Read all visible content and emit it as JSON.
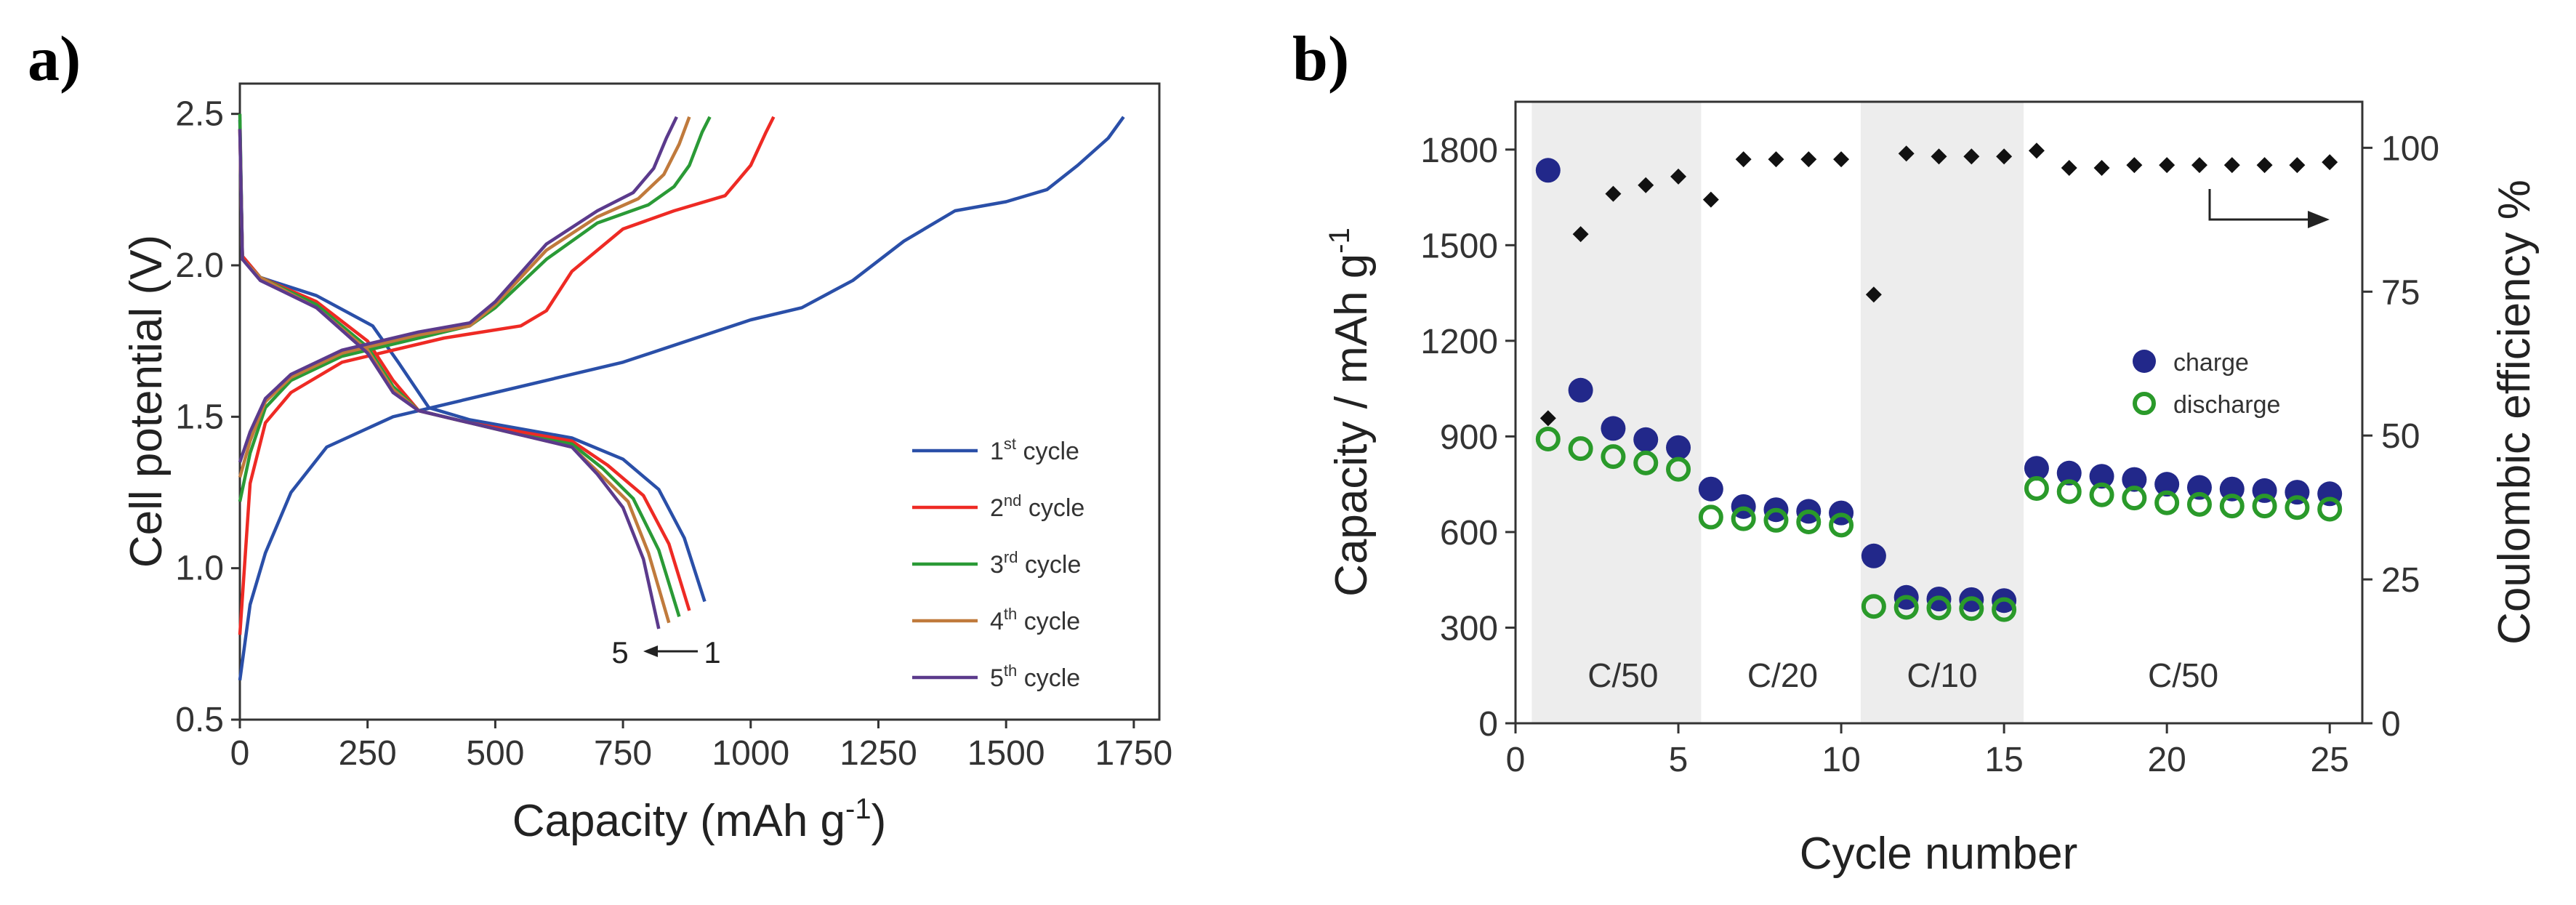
{
  "panels": {
    "a": "a)",
    "b": "b)"
  },
  "chart_data": [
    {
      "type": "line",
      "xlabel": "Capacity (mAh g",
      "xlabel_sup": "-1",
      "xlabel_end": ")",
      "ylabel": "Cell potential (V)",
      "xlim": [
        0,
        1800
      ],
      "ylim": [
        0.5,
        2.6
      ],
      "xticks": [
        "0",
        "250",
        "500",
        "750",
        "1000",
        "1250",
        "1500",
        "1750"
      ],
      "yticks": [
        "0.5",
        "1.0",
        "1.5",
        "2.0",
        "2.5"
      ],
      "legend_position": "bottom-right",
      "annotation": {
        "left": "5",
        "right": "1"
      },
      "series": [
        {
          "name": "1",
          "name_sup": "st",
          "name_end": " cycle",
          "color": "#2a4fa8",
          "charge": [
            [
              0,
              0.63
            ],
            [
              20,
              0.88
            ],
            [
              50,
              1.05
            ],
            [
              100,
              1.25
            ],
            [
              170,
              1.4
            ],
            [
              300,
              1.5
            ],
            [
              500,
              1.58
            ],
            [
              750,
              1.68
            ],
            [
              1000,
              1.82
            ],
            [
              1100,
              1.86
            ],
            [
              1200,
              1.95
            ],
            [
              1300,
              2.08
            ],
            [
              1400,
              2.18
            ],
            [
              1500,
              2.21
            ],
            [
              1580,
              2.25
            ],
            [
              1640,
              2.33
            ],
            [
              1700,
              2.42
            ],
            [
              1730,
              2.49
            ]
          ],
          "discharge": [
            [
              0,
              2.48
            ],
            [
              5,
              2.03
            ],
            [
              40,
              1.96
            ],
            [
              150,
              1.9
            ],
            [
              260,
              1.8
            ],
            [
              310,
              1.68
            ],
            [
              370,
              1.53
            ],
            [
              450,
              1.49
            ],
            [
              550,
              1.46
            ],
            [
              650,
              1.43
            ],
            [
              750,
              1.36
            ],
            [
              820,
              1.26
            ],
            [
              870,
              1.1
            ],
            [
              910,
              0.89
            ]
          ]
        },
        {
          "name": "2",
          "name_sup": "nd",
          "name_end": " cycle",
          "color": "#ee2a24",
          "charge": [
            [
              0,
              0.78
            ],
            [
              20,
              1.28
            ],
            [
              50,
              1.48
            ],
            [
              100,
              1.58
            ],
            [
              200,
              1.68
            ],
            [
              400,
              1.76
            ],
            [
              550,
              1.8
            ],
            [
              600,
              1.85
            ],
            [
              650,
              1.98
            ],
            [
              750,
              2.12
            ],
            [
              850,
              2.18
            ],
            [
              950,
              2.23
            ],
            [
              1000,
              2.33
            ],
            [
              1030,
              2.44
            ],
            [
              1045,
              2.49
            ]
          ],
          "discharge": [
            [
              0,
              2.45
            ],
            [
              5,
              2.03
            ],
            [
              40,
              1.96
            ],
            [
              150,
              1.88
            ],
            [
              250,
              1.75
            ],
            [
              300,
              1.62
            ],
            [
              350,
              1.52
            ],
            [
              450,
              1.48
            ],
            [
              550,
              1.45
            ],
            [
              650,
              1.42
            ],
            [
              720,
              1.34
            ],
            [
              790,
              1.24
            ],
            [
              840,
              1.08
            ],
            [
              880,
              0.86
            ]
          ]
        },
        {
          "name": "3",
          "name_sup": "rd",
          "name_end": " cycle",
          "color": "#2a9a36",
          "charge": [
            [
              0,
              1.22
            ],
            [
              20,
              1.38
            ],
            [
              50,
              1.53
            ],
            [
              100,
              1.62
            ],
            [
              200,
              1.7
            ],
            [
              350,
              1.76
            ],
            [
              450,
              1.8
            ],
            [
              500,
              1.86
            ],
            [
              600,
              2.02
            ],
            [
              700,
              2.14
            ],
            [
              800,
              2.2
            ],
            [
              850,
              2.26
            ],
            [
              880,
              2.33
            ],
            [
              905,
              2.44
            ],
            [
              920,
              2.49
            ]
          ],
          "discharge": [
            [
              0,
              2.5
            ],
            [
              5,
              2.02
            ],
            [
              40,
              1.96
            ],
            [
              150,
              1.87
            ],
            [
              250,
              1.73
            ],
            [
              300,
              1.6
            ],
            [
              350,
              1.52
            ],
            [
              450,
              1.48
            ],
            [
              550,
              1.44
            ],
            [
              650,
              1.41
            ],
            [
              710,
              1.33
            ],
            [
              770,
              1.23
            ],
            [
              820,
              1.06
            ],
            [
              860,
              0.84
            ]
          ]
        },
        {
          "name": "4",
          "name_sup": "th",
          "name_end": " cycle",
          "color": "#c07a3c",
          "charge": [
            [
              0,
              1.3
            ],
            [
              20,
              1.42
            ],
            [
              50,
              1.55
            ],
            [
              100,
              1.63
            ],
            [
              200,
              1.71
            ],
            [
              350,
              1.77
            ],
            [
              450,
              1.8
            ],
            [
              500,
              1.87
            ],
            [
              600,
              2.05
            ],
            [
              700,
              2.16
            ],
            [
              780,
              2.22
            ],
            [
              830,
              2.3
            ],
            [
              860,
              2.4
            ],
            [
              880,
              2.49
            ]
          ],
          "discharge": [
            [
              0,
              2.45
            ],
            [
              5,
              2.02
            ],
            [
              40,
              1.96
            ],
            [
              150,
              1.86
            ],
            [
              250,
              1.72
            ],
            [
              300,
              1.59
            ],
            [
              350,
              1.52
            ],
            [
              450,
              1.48
            ],
            [
              550,
              1.44
            ],
            [
              650,
              1.4
            ],
            [
              700,
              1.32
            ],
            [
              760,
              1.22
            ],
            [
              800,
              1.05
            ],
            [
              840,
              0.82
            ]
          ]
        },
        {
          "name": "5",
          "name_sup": "th",
          "name_end": " cycle",
          "color": "#5b3a8c",
          "charge": [
            [
              0,
              1.35
            ],
            [
              20,
              1.45
            ],
            [
              50,
              1.56
            ],
            [
              100,
              1.64
            ],
            [
              200,
              1.72
            ],
            [
              350,
              1.78
            ],
            [
              450,
              1.81
            ],
            [
              500,
              1.88
            ],
            [
              600,
              2.07
            ],
            [
              700,
              2.18
            ],
            [
              770,
              2.24
            ],
            [
              810,
              2.32
            ],
            [
              835,
              2.42
            ],
            [
              855,
              2.49
            ]
          ],
          "discharge": [
            [
              0,
              2.45
            ],
            [
              5,
              2.02
            ],
            [
              40,
              1.95
            ],
            [
              150,
              1.86
            ],
            [
              250,
              1.71
            ],
            [
              300,
              1.58
            ],
            [
              350,
              1.52
            ],
            [
              450,
              1.48
            ],
            [
              550,
              1.44
            ],
            [
              650,
              1.4
            ],
            [
              700,
              1.31
            ],
            [
              750,
              1.2
            ],
            [
              790,
              1.03
            ],
            [
              820,
              0.8
            ]
          ]
        }
      ]
    },
    {
      "type": "scatter",
      "xlabel": "Cycle number",
      "ylabel": "Capacity / mAh g",
      "ylabel_sup": "-1",
      "y2label": "Coulombic efficiency %",
      "xlim": [
        0,
        26
      ],
      "ylim": [
        0,
        1950
      ],
      "y2lim": [
        0,
        108
      ],
      "xticks": [
        "0",
        "5",
        "10",
        "15",
        "20",
        "25"
      ],
      "yticks": [
        "0",
        "300",
        "600",
        "900",
        "1200",
        "1500",
        "1800"
      ],
      "y2ticks": [
        "0",
        "25",
        "50",
        "75",
        "100"
      ],
      "legend_position": "right",
      "shaded_regions": [
        [
          0.5,
          5.7
        ],
        [
          10.6,
          15.6
        ]
      ],
      "regions": [
        {
          "label": "C/50",
          "x": 3.3
        },
        {
          "label": "C/20",
          "x": 8.2
        },
        {
          "label": "C/10",
          "x": 13.1
        },
        {
          "label": "C/50",
          "x": 20.5
        }
      ],
      "x": [
        1,
        2,
        3,
        4,
        5,
        6,
        7,
        8,
        9,
        10,
        11,
        12,
        13,
        14,
        15,
        16,
        17,
        18,
        19,
        20,
        21,
        22,
        23,
        24,
        25
      ],
      "series": [
        {
          "name": "charge",
          "color": "#22288a",
          "marker": "filled-circle",
          "values": [
            1735,
            1045,
            925,
            890,
            865,
            735,
            680,
            670,
            665,
            660,
            525,
            395,
            390,
            388,
            385,
            800,
            785,
            775,
            765,
            750,
            740,
            735,
            730,
            725,
            720
          ]
        },
        {
          "name": "discharge",
          "color": "#2a9a2a",
          "marker": "open-circle",
          "values": [
            910,
            880,
            855,
            835,
            815,
            665,
            660,
            655,
            650,
            640,
            385,
            382,
            380,
            378,
            375,
            755,
            745,
            735,
            725,
            710,
            705,
            700,
            700,
            695,
            690
          ]
        },
        {
          "name": "Coulombic efficiency",
          "color": "#111111",
          "marker": "diamond",
          "axis": "right",
          "values": [
            53,
            85,
            92,
            93.5,
            95,
            91,
            98,
            98,
            98,
            98,
            74.5,
            99,
            98.5,
            98.5,
            98.5,
            99.5,
            96.5,
            96.5,
            97,
            97,
            97,
            97,
            97,
            97,
            97.5
          ]
        }
      ]
    }
  ]
}
